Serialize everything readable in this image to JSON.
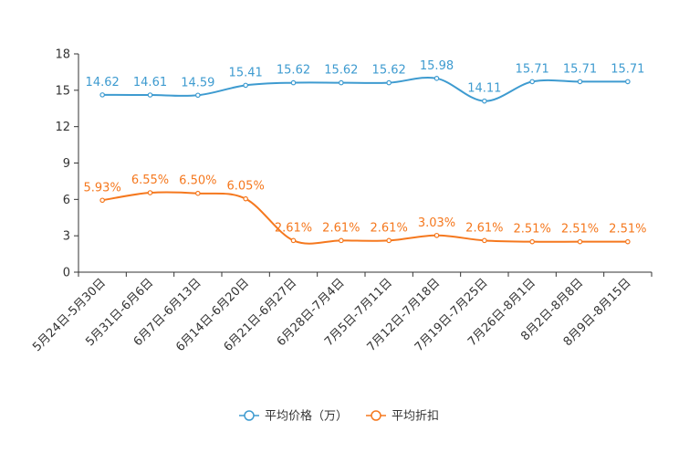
{
  "chart_data": {
    "type": "line",
    "categories": [
      "5月24日-5月30日",
      "5月31日-6月6日",
      "6月7日-6月13日",
      "6月14日-6月20日",
      "6月21日-6月27日",
      "6月28日-7月4日",
      "7月5日-7月11日",
      "7月12日-7月18日",
      "7月19日-7月25日",
      "7月26日-8月1日",
      "8月2日-8月8日",
      "8月9日-8月15日"
    ],
    "ylim": [
      0,
      18
    ],
    "yticks": [
      0,
      3,
      6,
      9,
      12,
      15,
      18
    ],
    "series": [
      {
        "name": "平均价格（万）",
        "color": "#3e9bd0",
        "values": [
          14.62,
          14.61,
          14.59,
          15.41,
          15.62,
          15.62,
          15.62,
          15.98,
          14.11,
          15.71,
          15.71,
          15.71
        ],
        "labels": [
          "14.62",
          "14.61",
          "14.59",
          "15.41",
          "15.62",
          "15.62",
          "15.62",
          "15.98",
          "14.11",
          "15.71",
          "15.71",
          "15.71"
        ]
      },
      {
        "name": "平均折扣",
        "color": "#f5781e",
        "values": [
          5.93,
          6.55,
          6.5,
          6.05,
          2.61,
          2.61,
          2.61,
          3.03,
          2.61,
          2.51,
          2.51,
          2.51
        ],
        "labels": [
          "5.93%",
          "6.55%",
          "6.50%",
          "6.05%",
          "2.61%",
          "2.61%",
          "2.61%",
          "3.03%",
          "2.61%",
          "2.51%",
          "2.51%",
          "2.51%"
        ]
      }
    ]
  }
}
